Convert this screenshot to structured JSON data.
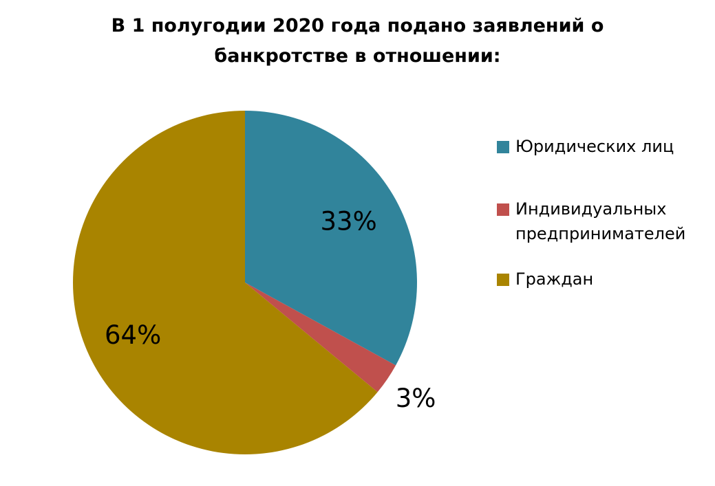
{
  "chart_data": {
    "type": "pie",
    "title_lines": [
      "В 1 полугодии 2020 года подано заявлений о",
      "банкротстве в отношении:"
    ],
    "categories": [
      "Юридических лиц",
      "Индивидуальных предпринимателей",
      "Граждан"
    ],
    "values": [
      33,
      3,
      64
    ],
    "value_labels": [
      "33%",
      "3%",
      "64%"
    ],
    "legend_placement": "right",
    "start_angle_deg": 0,
    "direction": "clockwise"
  },
  "legend": {
    "items": [
      {
        "lines": [
          "Юридических лиц"
        ]
      },
      {
        "lines": [
          "Индивидуальных",
          "предпринимателей"
        ]
      },
      {
        "lines": [
          "Граждан"
        ]
      }
    ]
  },
  "colors": {
    "slices": [
      "#31849b",
      "#c0504d",
      "#a98400"
    ],
    "background": "#ffffff"
  }
}
